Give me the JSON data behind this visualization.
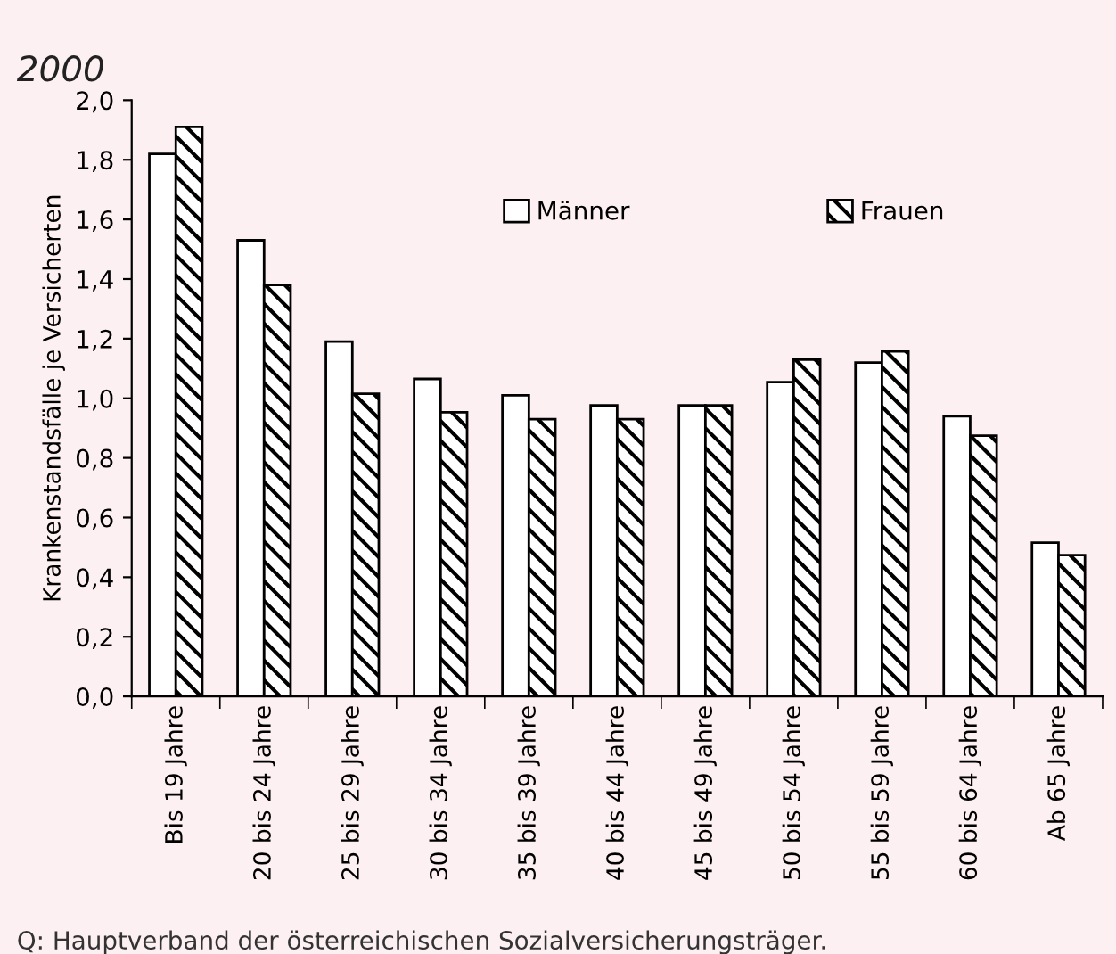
{
  "chart_data": {
    "type": "bar",
    "title": "2000",
    "ylabel": "Krankenstandsfälle je Versicherten",
    "categories": [
      "Bis 19 Jahre",
      "20 bis 24 Jahre",
      "25 bis 29 Jahre",
      "30 bis 34 Jahre",
      "35 bis 39 Jahre",
      "40 bis 44 Jahre",
      "45 bis 49 Jahre",
      "50 bis 54 Jahre",
      "55 bis 59 Jahre",
      "60 bis 64 Jahre",
      "Ab 65 Jahre"
    ],
    "series": [
      {
        "name": "Männer",
        "color": "#ffffff",
        "values": [
          1.82,
          1.53,
          1.19,
          1.065,
          1.01,
          0.976,
          0.976,
          1.054,
          1.12,
          0.94,
          0.516
        ]
      },
      {
        "name": "Frauen",
        "color": "#000000",
        "values": [
          1.91,
          1.38,
          1.015,
          0.953,
          0.93,
          0.93,
          0.976,
          1.13,
          1.157,
          0.875,
          0.474
        ]
      }
    ],
    "ylim": [
      0,
      2.0
    ],
    "yticks": [
      {
        "value": 0,
        "label": "0,0"
      },
      {
        "value": 0.2,
        "label": "0,2"
      },
      {
        "value": 0.4,
        "label": "0,4"
      },
      {
        "value": 0.6,
        "label": "0,6"
      },
      {
        "value": 0.8,
        "label": "0,8"
      },
      {
        "value": 1.0,
        "label": "1,0"
      },
      {
        "value": 1.2,
        "label": "1,2"
      },
      {
        "value": 1.4,
        "label": "1,4"
      },
      {
        "value": 1.6,
        "label": "1,6"
      },
      {
        "value": 1.8,
        "label": "1,8"
      },
      {
        "value": 2.0,
        "label": "2,0"
      }
    ],
    "grid": false,
    "legend": "top right",
    "annotations": [
      "Q: Hauptverband der österreichischen Sozialversicherungsträger."
    ]
  }
}
